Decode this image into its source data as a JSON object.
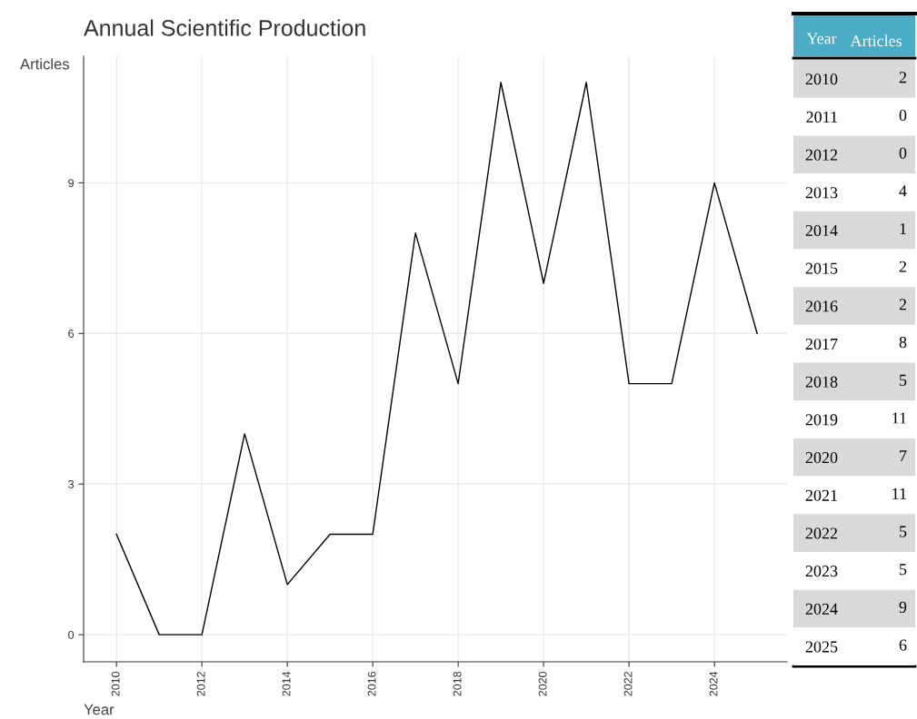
{
  "chart_data": [
    {
      "type": "line",
      "title": "Annual Scientific Production",
      "xlabel": "Year",
      "ylabel": "Articles",
      "x": [
        2010,
        2011,
        2012,
        2013,
        2014,
        2015,
        2016,
        2017,
        2018,
        2019,
        2020,
        2021,
        2022,
        2023,
        2024,
        2025
      ],
      "series": [
        {
          "color": "#000000",
          "values": [
            2,
            0,
            0,
            4,
            1,
            2,
            2,
            8,
            5,
            11,
            7,
            11,
            5,
            5,
            9,
            6
          ]
        }
      ],
      "xlim": [
        2009.23,
        2025.7
      ],
      "xticks": [
        2010,
        2012,
        2014,
        2016,
        2018,
        2020,
        2022,
        2024
      ],
      "ylim": [
        -0.54,
        11.52
      ],
      "yticks": [
        0,
        3,
        6,
        9
      ],
      "grid": true
    },
    {
      "type": "heatmap",
      "ylabel": "Year",
      "categories": [
        "Articles"
      ],
      "y_categories": [
        "2010",
        "2011",
        "2012",
        "2013",
        "2014",
        "2015",
        "2016",
        "2017",
        "2018",
        "2019",
        "2020",
        "2021",
        "2022",
        "2023",
        "2024",
        "2025"
      ],
      "cells": [
        [
          2
        ],
        [
          0
        ],
        [
          0
        ],
        [
          4
        ],
        [
          1
        ],
        [
          2
        ],
        [
          2
        ],
        [
          8
        ],
        [
          5
        ],
        [
          11
        ],
        [
          7
        ],
        [
          11
        ],
        [
          5
        ],
        [
          5
        ],
        [
          9
        ],
        [
          6
        ]
      ],
      "data_labels": true
    }
  ]
}
